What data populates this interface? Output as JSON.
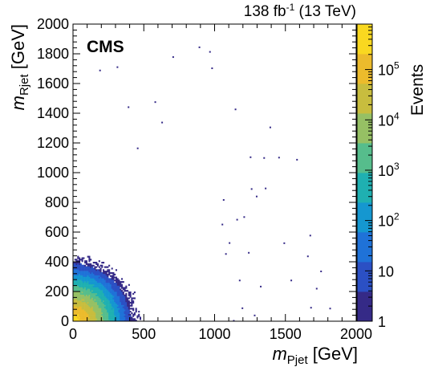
{
  "header": {
    "lumi_prefix": "138 fb",
    "lumi_exp": "-1",
    "lumi_suffix": " (13 TeV)",
    "experiment": "CMS"
  },
  "chart_data": {
    "type": "heatmap",
    "title": "",
    "xlabel": {
      "main": "m",
      "sub": "Pjet",
      "unit": " [GeV]"
    },
    "ylabel": {
      "main": "m",
      "sub": "Rjet",
      "unit": " [GeV]"
    },
    "zlabel": "Events",
    "xlim": [
      0,
      2000
    ],
    "ylim": [
      0,
      2000
    ],
    "zlim": [
      1,
      800000
    ],
    "z_scale": "log",
    "x_major_ticks": [
      0,
      500,
      1000,
      1500,
      2000
    ],
    "y_major_ticks": [
      0,
      200,
      400,
      600,
      800,
      1000,
      1200,
      1400,
      1600,
      1800,
      2000
    ],
    "z_tick_labels": [
      {
        "value": 1,
        "base": "1",
        "exp": ""
      },
      {
        "value": 10,
        "base": "10",
        "exp": ""
      },
      {
        "value": 100,
        "base": "10",
        "exp": "2"
      },
      {
        "value": 1000,
        "base": "10",
        "exp": "3"
      },
      {
        "value": 10000,
        "base": "10",
        "exp": "4"
      },
      {
        "value": 100000,
        "base": "10",
        "exp": "5"
      }
    ],
    "bin_width": 10,
    "density_model": {
      "description": "approximate event density: peak near low mass, falling with radius in (mPjet, mRjet) plane",
      "peak_log10": 5.6,
      "x_scale": 380,
      "y_scale": 360,
      "exponent": 1.35,
      "falloff_log10": 4.6
    },
    "palette": [
      "#352a87",
      "#2b50c4",
      "#1f72d8",
      "#1597d0",
      "#1fb0b1",
      "#56bd8c",
      "#96c064",
      "#c8bd3e",
      "#ecbb2c",
      "#f9d820"
    ],
    "grid": false,
    "legend": "none"
  }
}
